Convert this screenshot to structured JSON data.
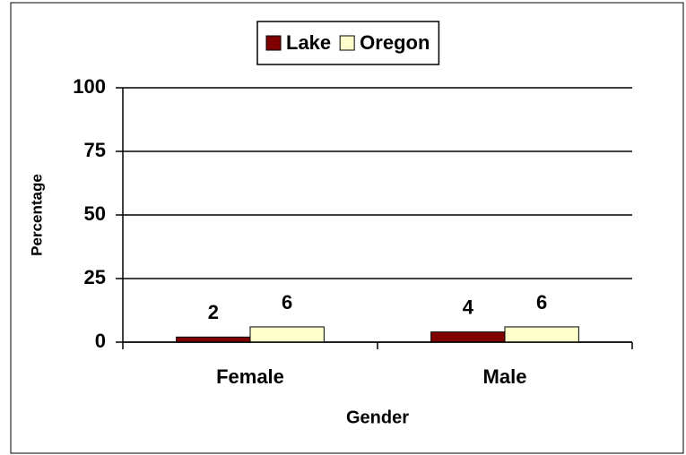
{
  "chart_data": {
    "type": "bar",
    "categories": [
      "Female",
      "Male"
    ],
    "series": [
      {
        "name": "Lake",
        "color": "#800000",
        "values": [
          2,
          4
        ]
      },
      {
        "name": "Oregon",
        "color": "#ffffcc",
        "values": [
          6,
          6
        ]
      }
    ],
    "xlabel": "Gender",
    "ylabel": "Percentage",
    "ylim": [
      0,
      100
    ],
    "yticks": [
      0,
      25,
      50,
      75,
      100
    ],
    "grid": true,
    "legend": "top"
  }
}
